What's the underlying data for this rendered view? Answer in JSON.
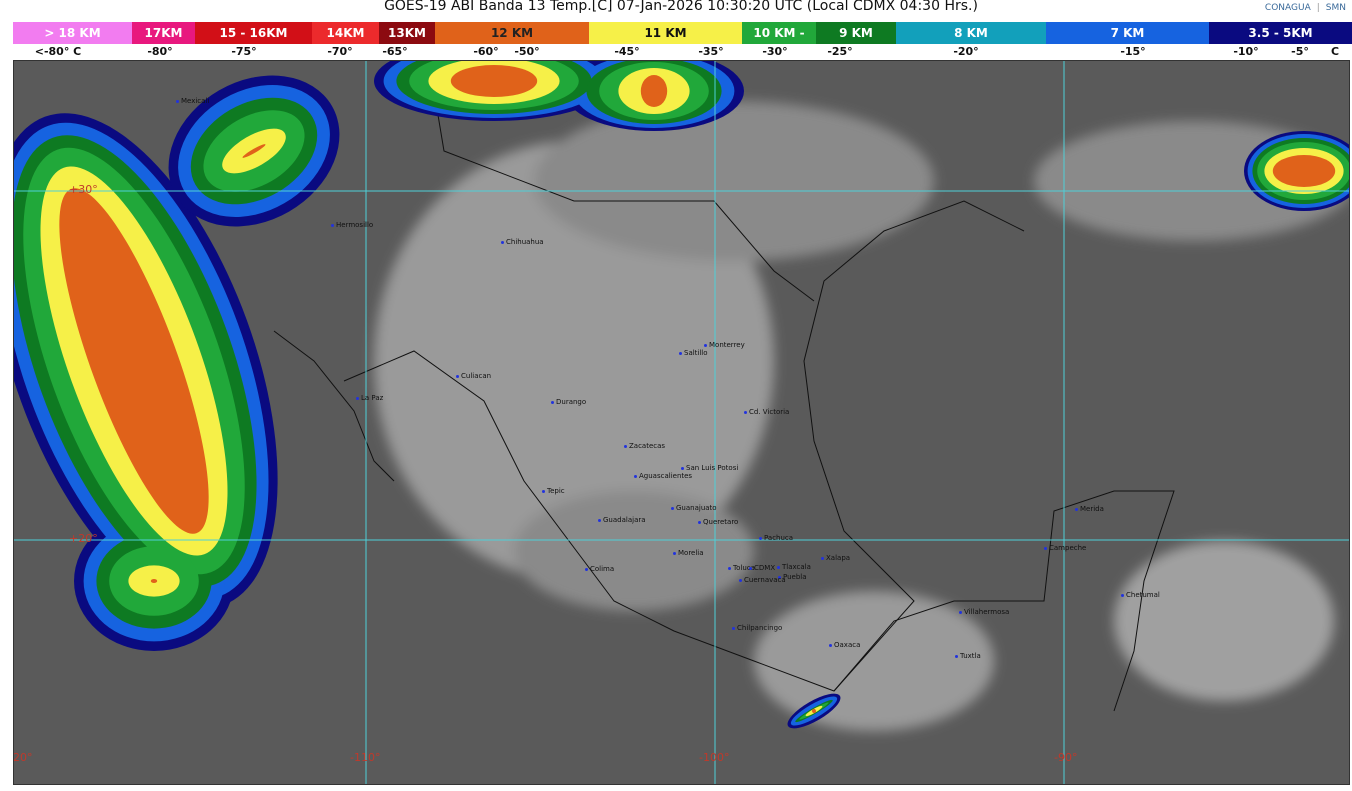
{
  "title": "GOES-19 ABI Banda 13 Temp.[C] 07-Jan-2026 10:30:20 UTC (Local CDMX  04:30 Hrs.)",
  "logos": {
    "left": "CONAGUA",
    "right": "SMN"
  },
  "legend": {
    "bands": [
      {
        "label": "> 18 KM",
        "color": "#f27cf0"
      },
      {
        "label": "17KM",
        "color": "#e8187e"
      },
      {
        "label": "15 - 16KM",
        "color": "#d20f17"
      },
      {
        "label": "14KM",
        "color": "#ec2a2c"
      },
      {
        "label": "13KM",
        "color": "#8c0a10"
      },
      {
        "label": "12 KM",
        "color": "#e0621a"
      },
      {
        "label": "11 KM",
        "color": "#f6f048"
      },
      {
        "label": "10 KM -",
        "color": "#21a83a"
      },
      {
        "label": "9 KM",
        "color": "#0e7a22"
      },
      {
        "label": "8 KM",
        "color": "#12a0bb"
      },
      {
        "label": "7 KM",
        "color": "#1663e0"
      },
      {
        "label": "3.5 - 5KM",
        "color": "#0a0a80"
      }
    ],
    "temps": [
      "<-80° C",
      "-80°",
      "-75°",
      "-70°",
      "-65°",
      "-60°",
      "-50°",
      "-45°",
      "-35°",
      "-30°",
      "-25°",
      "-20°",
      "-15°",
      "-10°",
      "-5°",
      "C"
    ]
  },
  "map": {
    "latitudes": [
      "+30°",
      "+20°"
    ],
    "longitudes": [
      "-120°",
      "-110°",
      "-100°",
      "-90°"
    ],
    "cities": [
      "Mexicali",
      "Hermosillo",
      "Chihuahua",
      "Culiacan",
      "La Paz",
      "Durango",
      "Saltillo",
      "Monterrey",
      "Cd. Victoria",
      "Zacatecas",
      "San Luis Potosi",
      "Aguascalientes",
      "Tepic",
      "Guanajuato",
      "Guadalajara",
      "Queretaro",
      "Pachuca",
      "Morelia",
      "Xalapa",
      "Colima",
      "Toluca",
      "CDMX",
      "Tlaxcala",
      "Puebla",
      "Cuernavaca",
      "Chilpancingo",
      "Oaxaca",
      "Villahermosa",
      "Tuxtla",
      "Merida",
      "Campeche",
      "Chetumal"
    ]
  }
}
